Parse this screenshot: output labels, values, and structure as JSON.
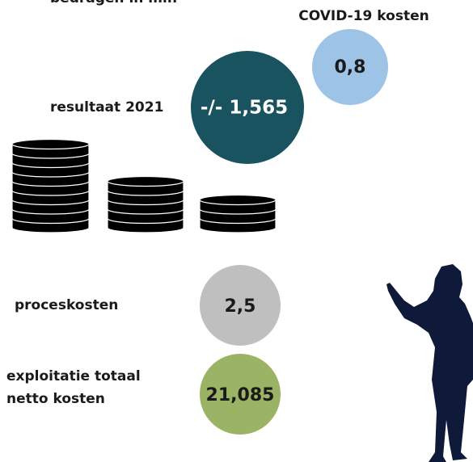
{
  "header": {
    "note": "bedragen in mln"
  },
  "items": [
    {
      "label": [
        "COVID-19 kosten"
      ],
      "value": "0,8"
    },
    {
      "label": [
        "resultaat 2021"
      ],
      "value": "-/- 1,565"
    },
    {
      "label": [
        "proceskosten"
      ],
      "value": "2,5"
    },
    {
      "label": [
        "exploitatie totaal",
        "netto kosten"
      ],
      "value": "21,085"
    }
  ]
}
